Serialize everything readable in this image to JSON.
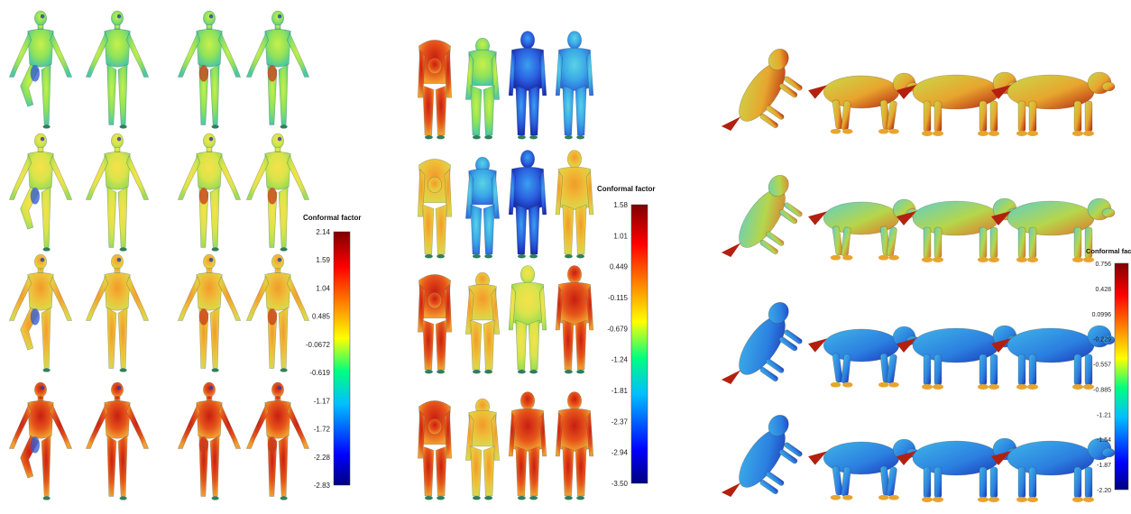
{
  "colormap": {
    "stops": [
      "#00007f",
      "#0000ff",
      "#00bfff",
      "#00ff80",
      "#ffff00",
      "#ff8000",
      "#ff0000",
      "#7f0000"
    ]
  },
  "panels": [
    {
      "id": "human-left",
      "figure_type": "human-shape",
      "rows": 4,
      "cols": 4,
      "colorbar": {
        "title": "Conformal factor",
        "ticks": [
          "2.14",
          "1.59",
          "1.04",
          "0.485",
          "-0.0672",
          "-0.619",
          "-1.17",
          "-1.72",
          "-2.28",
          "-2.83"
        ]
      }
    },
    {
      "id": "human-middle",
      "figure_type": "human-bent",
      "rows": 4,
      "cols": 4,
      "colorbar": {
        "title": "Conformal factor",
        "ticks": [
          "1.58",
          "1.01",
          "0.449",
          "-0.115",
          "-0.679",
          "-1.24",
          "-1.81",
          "-2.37",
          "-2.94",
          "-3.50"
        ]
      }
    },
    {
      "id": "animal-right",
      "figure_type": "quadruped",
      "rows": 4,
      "cols": 4,
      "colorbar": {
        "title": "Conformal factor",
        "ticks": [
          "0.756",
          "0.428",
          "0.0996",
          "-0.229",
          "-0.557",
          "-0.885",
          "-1.21",
          "-1.54",
          "-1.87",
          "-2.20"
        ]
      }
    }
  ]
}
